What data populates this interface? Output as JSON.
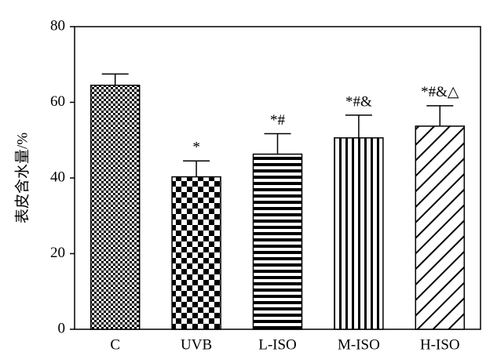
{
  "chart_data": {
    "type": "bar",
    "ylabel": "表皮含水量/%",
    "categories": [
      "C",
      "UVB",
      "L-ISO",
      "M-ISO",
      "H-ISO"
    ],
    "values": [
      64.5,
      40.3,
      46.3,
      50.6,
      53.7
    ],
    "errors": [
      3.0,
      4.2,
      5.4,
      6.0,
      5.4
    ],
    "annotations": [
      null,
      "*",
      "*#",
      "*#&",
      "*#&△"
    ],
    "color": "#000000",
    "ylim": [
      0,
      80
    ],
    "yticks": [
      0,
      20,
      40,
      60,
      80
    ],
    "grid": false
  }
}
